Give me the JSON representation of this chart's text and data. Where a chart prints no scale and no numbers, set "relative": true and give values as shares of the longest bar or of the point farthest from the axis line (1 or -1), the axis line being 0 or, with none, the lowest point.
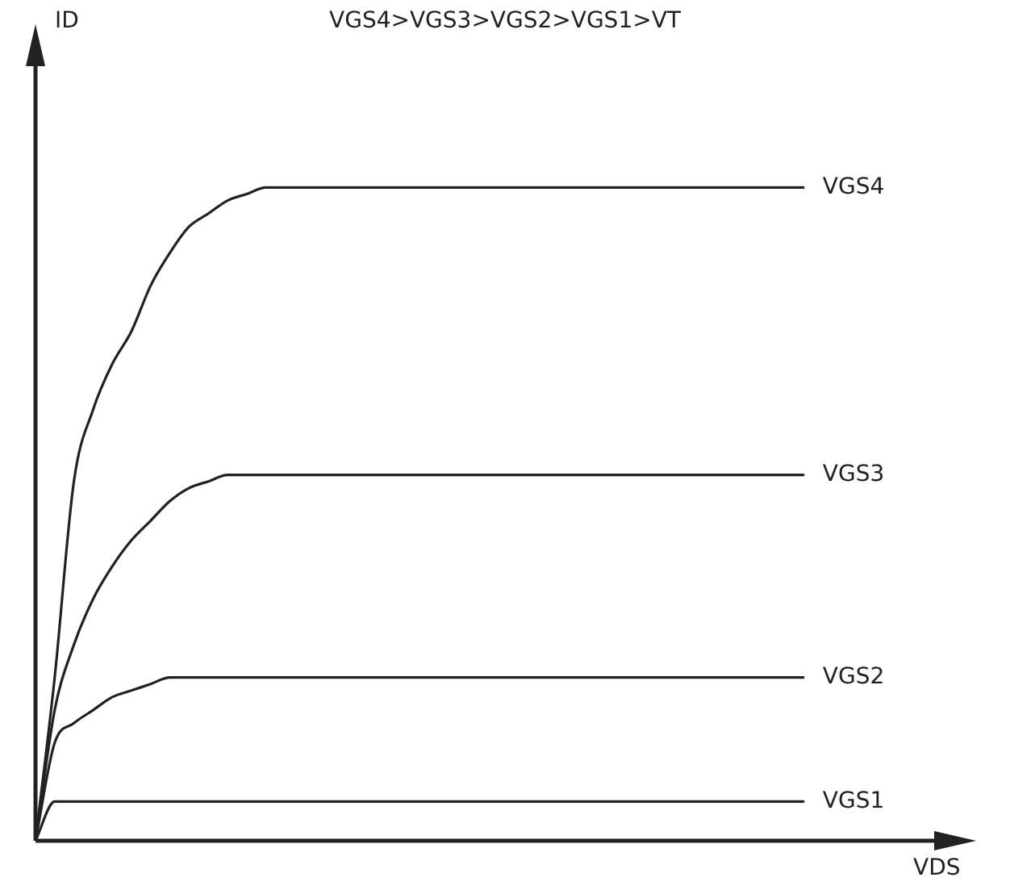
{
  "chart_data": {
    "type": "line",
    "title": "VGS4>VGS3>VGS2>VGS1>VT",
    "xlabel": "VDS",
    "annotations": [
      "ID"
    ],
    "relative": true,
    "legend": false,
    "tick_labels": false,
    "marker": "none",
    "line_style": "solid",
    "categories": [
      null,
      null,
      null,
      null,
      null,
      null,
      null,
      null,
      null,
      null,
      null,
      null,
      null,
      null,
      null,
      null,
      null,
      null,
      null,
      null,
      null,
      null,
      null,
      null,
      null,
      null,
      null,
      null,
      null,
      null,
      null,
      null,
      null,
      null,
      null,
      null,
      null,
      null,
      null,
      null,
      null,
      null,
      null,
      null,
      null,
      null,
      null,
      null,
      null,
      null
    ],
    "series": [
      {
        "name": "VGS4",
        "color": "#222222",
        "values": [
          0,
          0.25,
          0.55,
          0.66,
          0.73,
          0.78,
          0.85,
          0.9,
          0.94,
          0.96,
          0.98,
          0.99,
          1,
          1,
          1,
          1,
          1,
          1,
          1,
          1,
          1,
          1,
          1,
          1,
          1,
          1,
          1,
          1,
          1,
          1,
          1,
          1,
          1,
          1,
          1,
          1,
          1,
          1,
          1,
          1,
          1,
          null,
          null,
          null,
          null,
          null,
          null,
          null,
          null,
          null
        ]
      },
      {
        "name": "VGS3",
        "color": "#222222",
        "values": [
          0,
          0.2,
          0.3,
          0.37,
          0.42,
          0.46,
          0.49,
          0.52,
          0.54,
          0.55,
          0.56,
          0.56,
          0.56,
          0.56,
          0.56,
          0.56,
          0.56,
          0.56,
          0.56,
          0.56,
          0.56,
          0.56,
          0.56,
          0.56,
          0.56,
          0.56,
          0.56,
          0.56,
          0.56,
          0.56,
          0.56,
          0.56,
          0.56,
          0.56,
          0.56,
          0.56,
          0.56,
          0.56,
          0.56,
          0.56,
          0.56,
          null,
          null,
          null,
          null,
          null,
          null,
          null,
          null,
          null
        ]
      },
      {
        "name": "VGS2",
        "color": "#222222",
        "values": [
          0,
          0.15,
          0.18,
          0.2,
          0.22,
          0.23,
          0.24,
          0.25,
          0.25,
          0.25,
          0.25,
          0.25,
          0.25,
          0.25,
          0.25,
          0.25,
          0.25,
          0.25,
          0.25,
          0.25,
          0.25,
          0.25,
          0.25,
          0.25,
          0.25,
          0.25,
          0.25,
          0.25,
          0.25,
          0.25,
          0.25,
          0.25,
          0.25,
          0.25,
          0.25,
          0.25,
          0.25,
          0.25,
          0.25,
          0.25,
          0.25,
          null,
          null,
          null,
          null,
          null,
          null,
          null,
          null,
          null
        ]
      },
      {
        "name": "VGS1",
        "color": "#222222",
        "values": [
          0,
          0.06,
          0.06,
          0.06,
          0.06,
          0.06,
          0.06,
          0.06,
          0.06,
          0.06,
          0.06,
          0.06,
          0.06,
          0.06,
          0.06,
          0.06,
          0.06,
          0.06,
          0.06,
          0.06,
          0.06,
          0.06,
          0.06,
          0.06,
          0.06,
          0.06,
          0.06,
          0.06,
          0.06,
          0.06,
          0.06,
          0.06,
          0.06,
          0.06,
          0.06,
          0.06,
          0.06,
          0.06,
          0.06,
          0.06,
          0.06,
          null,
          null,
          null,
          null,
          null,
          null,
          null,
          null,
          null
        ]
      }
    ]
  }
}
